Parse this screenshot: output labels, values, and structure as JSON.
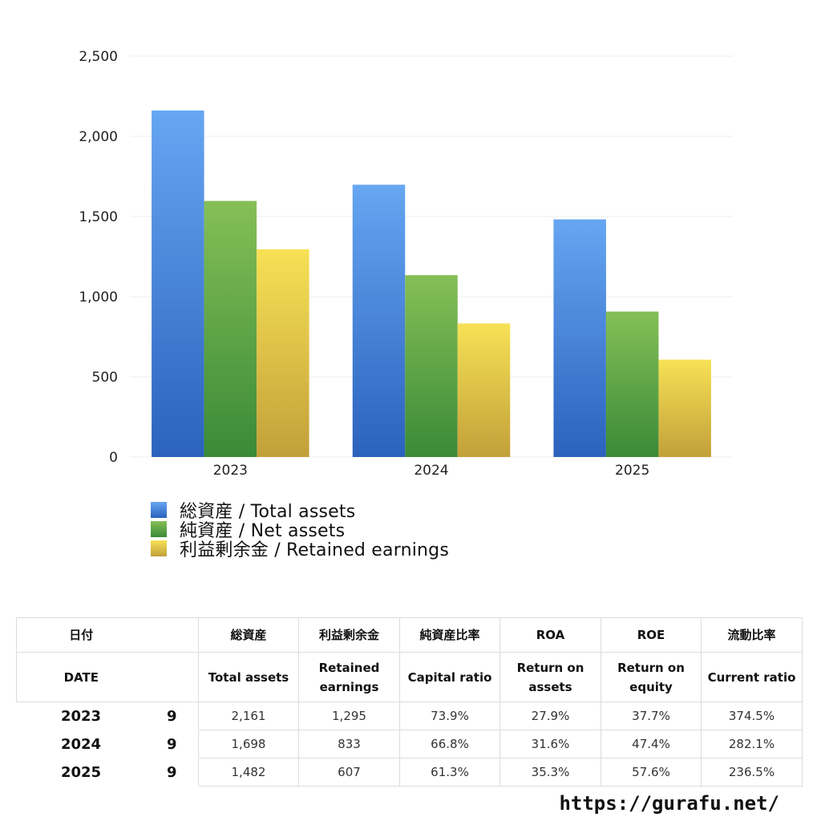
{
  "chart_data": {
    "type": "bar",
    "categories": [
      "2023",
      "2024",
      "2025"
    ],
    "series": [
      {
        "name": "総資産 / Total assets",
        "values": [
          2161,
          1698,
          1482
        ],
        "color_top": "#66a6f2",
        "color_bottom": "#2b62bd"
      },
      {
        "name": "純資産 / Net assets",
        "values": [
          1597,
          1134,
          907
        ],
        "color_top": "#85bf57",
        "color_bottom": "#3a8a37"
      },
      {
        "name": "利益剰余金 / Retained earnings",
        "values": [
          1295,
          833,
          607
        ],
        "color_top": "#f7e155",
        "color_bottom": "#c2a03a"
      }
    ],
    "ylim": [
      0,
      2500
    ],
    "yticks": [
      0,
      500,
      1000,
      1500,
      2000,
      2500
    ],
    "ytick_labels": [
      "0",
      "500",
      "1,000",
      "1,500",
      "2,000",
      "2,500"
    ],
    "grid": true,
    "legend_position": "bottom-left"
  },
  "table": {
    "header_ja": [
      "日付",
      "",
      "総資産",
      "利益剰余金",
      "純資産比率",
      "ROA",
      "ROE",
      "流動比率"
    ],
    "header_en": [
      "DATE",
      "",
      "Total assets",
      "Retained earnings",
      "Capital ratio",
      "Return on assets",
      "Return on equity",
      "Current ratio"
    ],
    "rows": [
      {
        "year": "2023",
        "month": "9",
        "values": [
          "2,161",
          "1,295",
          "73.9%",
          "27.9%",
          "37.7%",
          "374.5%"
        ]
      },
      {
        "year": "2024",
        "month": "9",
        "values": [
          "1,698",
          "833",
          "66.8%",
          "31.6%",
          "47.4%",
          "282.1%"
        ]
      },
      {
        "year": "2025",
        "month": "9",
        "values": [
          "1,482",
          "607",
          "61.3%",
          "35.3%",
          "57.6%",
          "236.5%"
        ]
      }
    ]
  },
  "footer": {
    "url": "https://gurafu.net/"
  }
}
